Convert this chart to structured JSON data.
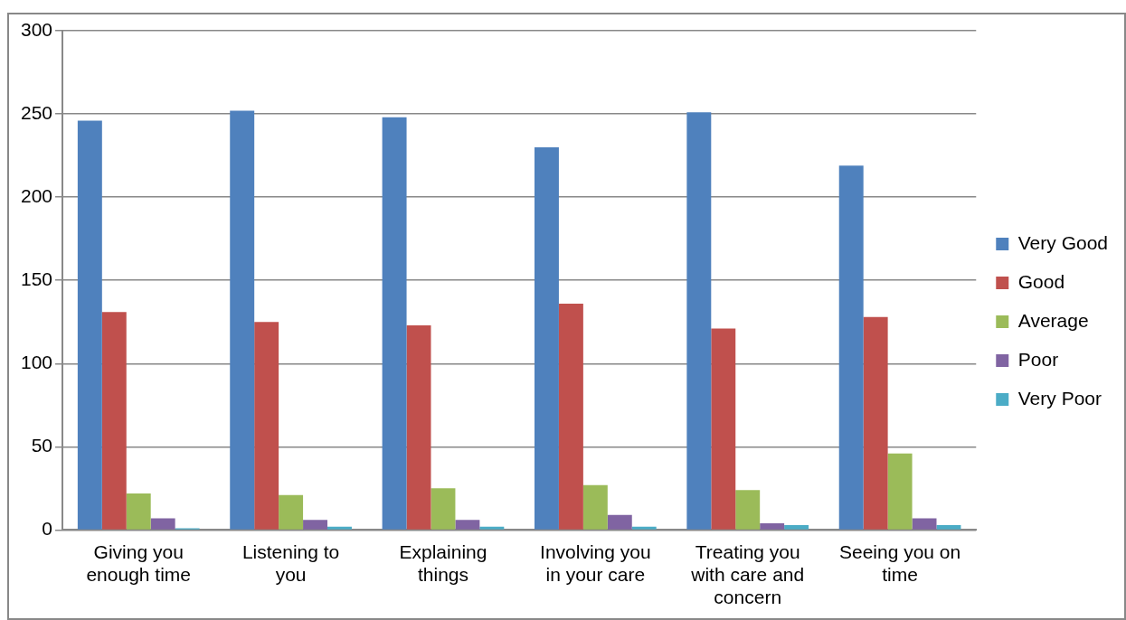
{
  "chart_data": {
    "type": "bar",
    "categories": [
      "Giving you enough time",
      "Listening to you",
      "Explaining things",
      "Involving you in your care",
      "Treating you with care and concern",
      "Seeing you on time"
    ],
    "series": [
      {
        "name": "Very Good",
        "color": "#4f81bd",
        "values": [
          246,
          252,
          248,
          230,
          251,
          219
        ]
      },
      {
        "name": "Good",
        "color": "#c0504d",
        "values": [
          131,
          125,
          123,
          136,
          121,
          128
        ]
      },
      {
        "name": "Average",
        "color": "#9bbb59",
        "values": [
          22,
          21,
          25,
          27,
          24,
          46
        ]
      },
      {
        "name": "Poor",
        "color": "#8064a2",
        "values": [
          7,
          6,
          6,
          9,
          4,
          7
        ]
      },
      {
        "name": "Very Poor",
        "color": "#4bacc6",
        "values": [
          1,
          2,
          2,
          2,
          3,
          3
        ]
      }
    ],
    "ylim": [
      0,
      300
    ],
    "yticks": [
      0,
      50,
      100,
      150,
      200,
      250,
      300
    ],
    "grid": "y",
    "legend": "right"
  }
}
